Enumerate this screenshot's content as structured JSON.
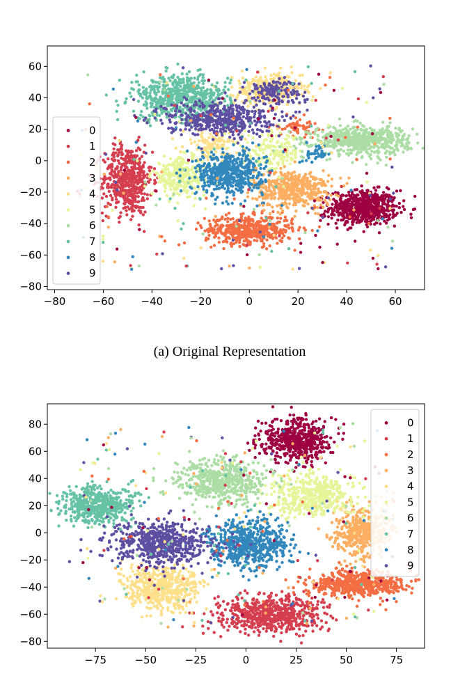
{
  "chart_data": [
    {
      "type": "scatter",
      "caption": "(a) Original Representation",
      "xlim": [
        -83,
        72
      ],
      "ylim": [
        -82,
        73
      ],
      "xticks": [
        -80,
        -60,
        -40,
        -20,
        0,
        20,
        40,
        60
      ],
      "yticks": [
        -80,
        -60,
        -40,
        -20,
        0,
        20,
        40,
        60
      ],
      "xtick_labels": [
        "−80",
        "−60",
        "−40",
        "−20",
        "0",
        "20",
        "40",
        "60"
      ],
      "ytick_labels": [
        "−80",
        "−60",
        "−40",
        "−20",
        "0",
        "20",
        "40",
        "60"
      ],
      "grid": false,
      "legend_position": "center-left",
      "series": [
        {
          "name": "0",
          "color": "#9e0142",
          "clusters": [
            {
              "cx": 47,
              "cy": -30,
              "sx": 7,
              "sy": 5.5,
              "n": 650
            }
          ]
        },
        {
          "name": "1",
          "color": "#d53e4f",
          "clusters": [
            {
              "cx": -50,
              "cy": -12,
              "sx": 5,
              "sy": 11,
              "n": 550
            }
          ]
        },
        {
          "name": "2",
          "color": "#f46d43",
          "clusters": [
            {
              "cx": 0,
              "cy": -44,
              "sx": 9,
              "sy": 4.5,
              "n": 480
            },
            {
              "cx": 20,
              "cy": 22,
              "sx": 4,
              "sy": 3,
              "n": 60
            }
          ]
        },
        {
          "name": "3",
          "color": "#fdae61",
          "clusters": [
            {
              "cx": 18,
              "cy": -18,
              "sx": 8,
              "sy": 6,
              "n": 480
            }
          ]
        },
        {
          "name": "4",
          "color": "#fee08b",
          "clusters": [
            {
              "cx": 8,
              "cy": 45,
              "sx": 7,
              "sy": 5,
              "n": 320
            },
            {
              "cx": -15,
              "cy": 10,
              "sx": 6,
              "sy": 5,
              "n": 120
            }
          ]
        },
        {
          "name": "5",
          "color": "#e6f598",
          "clusters": [
            {
              "cx": -28,
              "cy": -10,
              "sx": 6,
              "sy": 6,
              "n": 280
            },
            {
              "cx": 10,
              "cy": 5,
              "sx": 6,
              "sy": 6,
              "n": 160
            }
          ]
        },
        {
          "name": "6",
          "color": "#abdda4",
          "clusters": [
            {
              "cx": 46,
              "cy": 13,
              "sx": 10,
              "sy": 4.5,
              "n": 600
            }
          ]
        },
        {
          "name": "7",
          "color": "#66c2a5",
          "clusters": [
            {
              "cx": -28,
              "cy": 40,
              "sx": 10,
              "sy": 7,
              "n": 600
            }
          ]
        },
        {
          "name": "8",
          "color": "#3288bd",
          "clusters": [
            {
              "cx": -8,
              "cy": -8,
              "sx": 7,
              "sy": 7,
              "n": 520
            },
            {
              "cx": 28,
              "cy": 5,
              "sx": 3,
              "sy": 3,
              "n": 40
            }
          ]
        },
        {
          "name": "9",
          "color": "#5e4fa2",
          "clusters": [
            {
              "cx": -12,
              "cy": 27,
              "sx": 11,
              "sy": 5.5,
              "n": 480
            },
            {
              "cx": 10,
              "cy": 44,
              "sx": 6,
              "sy": 4,
              "n": 140
            }
          ]
        }
      ]
    },
    {
      "type": "scatter",
      "caption": "",
      "xlim": [
        -99,
        89
      ],
      "ylim": [
        -85,
        95
      ],
      "xticks": [
        -75,
        -50,
        -25,
        0,
        25,
        50,
        75
      ],
      "yticks": [
        -80,
        -60,
        -40,
        -20,
        0,
        20,
        40,
        60,
        80
      ],
      "xtick_labels": [
        "−75",
        "−50",
        "−25",
        "0",
        "25",
        "50",
        "75"
      ],
      "ytick_labels": [
        "−80",
        "−60",
        "−40",
        "−20",
        "0",
        "20",
        "40",
        "60",
        "80"
      ],
      "grid": false,
      "legend_position": "upper-right",
      "series": [
        {
          "name": "0",
          "color": "#9e0142",
          "clusters": [
            {
              "cx": 25,
              "cy": 68,
              "sx": 9,
              "sy": 8,
              "n": 550
            }
          ]
        },
        {
          "name": "1",
          "color": "#d53e4f",
          "clusters": [
            {
              "cx": 12,
              "cy": -60,
              "sx": 13,
              "sy": 6.5,
              "n": 650
            }
          ]
        },
        {
          "name": "2",
          "color": "#f46d43",
          "clusters": [
            {
              "cx": 55,
              "cy": -37,
              "sx": 12,
              "sy": 5,
              "n": 550
            }
          ]
        },
        {
          "name": "3",
          "color": "#fdae61",
          "clusters": [
            {
              "cx": 58,
              "cy": 0,
              "sx": 7,
              "sy": 9,
              "n": 450
            }
          ]
        },
        {
          "name": "4",
          "color": "#fee08b",
          "clusters": [
            {
              "cx": -42,
              "cy": -40,
              "sx": 9,
              "sy": 8,
              "n": 520
            }
          ]
        },
        {
          "name": "5",
          "color": "#e6f598",
          "clusters": [
            {
              "cx": 33,
              "cy": 28,
              "sx": 11,
              "sy": 8,
              "n": 450
            }
          ]
        },
        {
          "name": "6",
          "color": "#abdda4",
          "clusters": [
            {
              "cx": -13,
              "cy": 38,
              "sx": 11,
              "sy": 8,
              "n": 550
            }
          ]
        },
        {
          "name": "7",
          "color": "#66c2a5",
          "clusters": [
            {
              "cx": -74,
              "cy": 20,
              "sx": 9,
              "sy": 7,
              "n": 500
            }
          ]
        },
        {
          "name": "8",
          "color": "#3288bd",
          "clusters": [
            {
              "cx": 2,
              "cy": -8,
              "sx": 10,
              "sy": 9,
              "n": 600
            }
          ]
        },
        {
          "name": "9",
          "color": "#5e4fa2",
          "clusters": [
            {
              "cx": -42,
              "cy": -8,
              "sx": 12,
              "sy": 8,
              "n": 600
            }
          ]
        }
      ]
    }
  ]
}
